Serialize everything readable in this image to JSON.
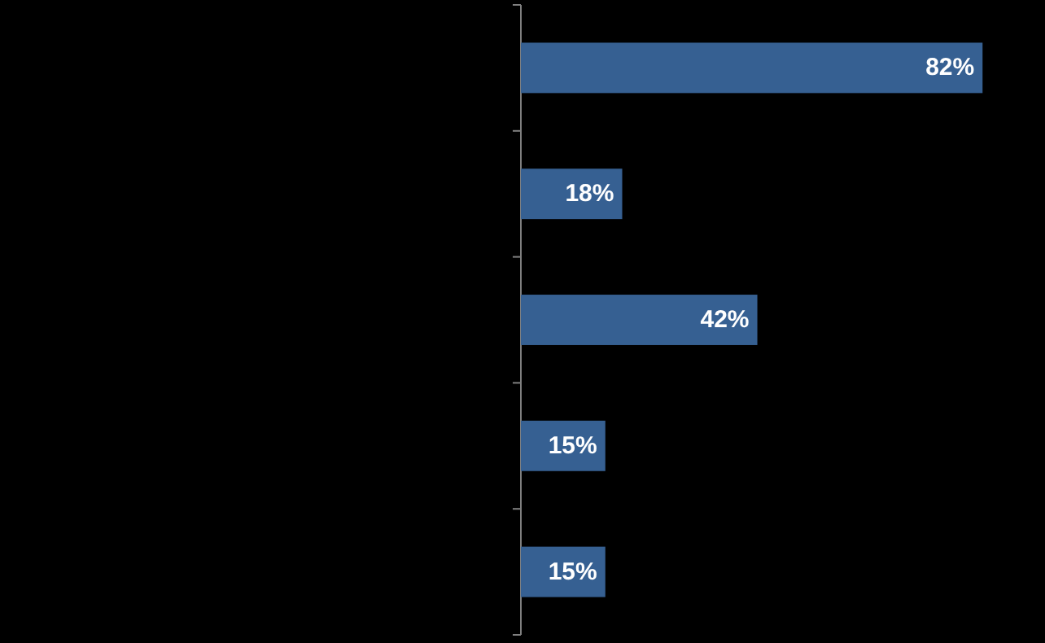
{
  "chart_data": {
    "type": "bar",
    "orientation": "horizontal",
    "categories": [
      null,
      null,
      null,
      null,
      null
    ],
    "values": [
      82,
      18,
      42,
      15,
      15
    ],
    "color": "#366092",
    "value_labels": [
      "82%",
      "18%",
      "42%",
      "15%",
      "15%"
    ]
  }
}
